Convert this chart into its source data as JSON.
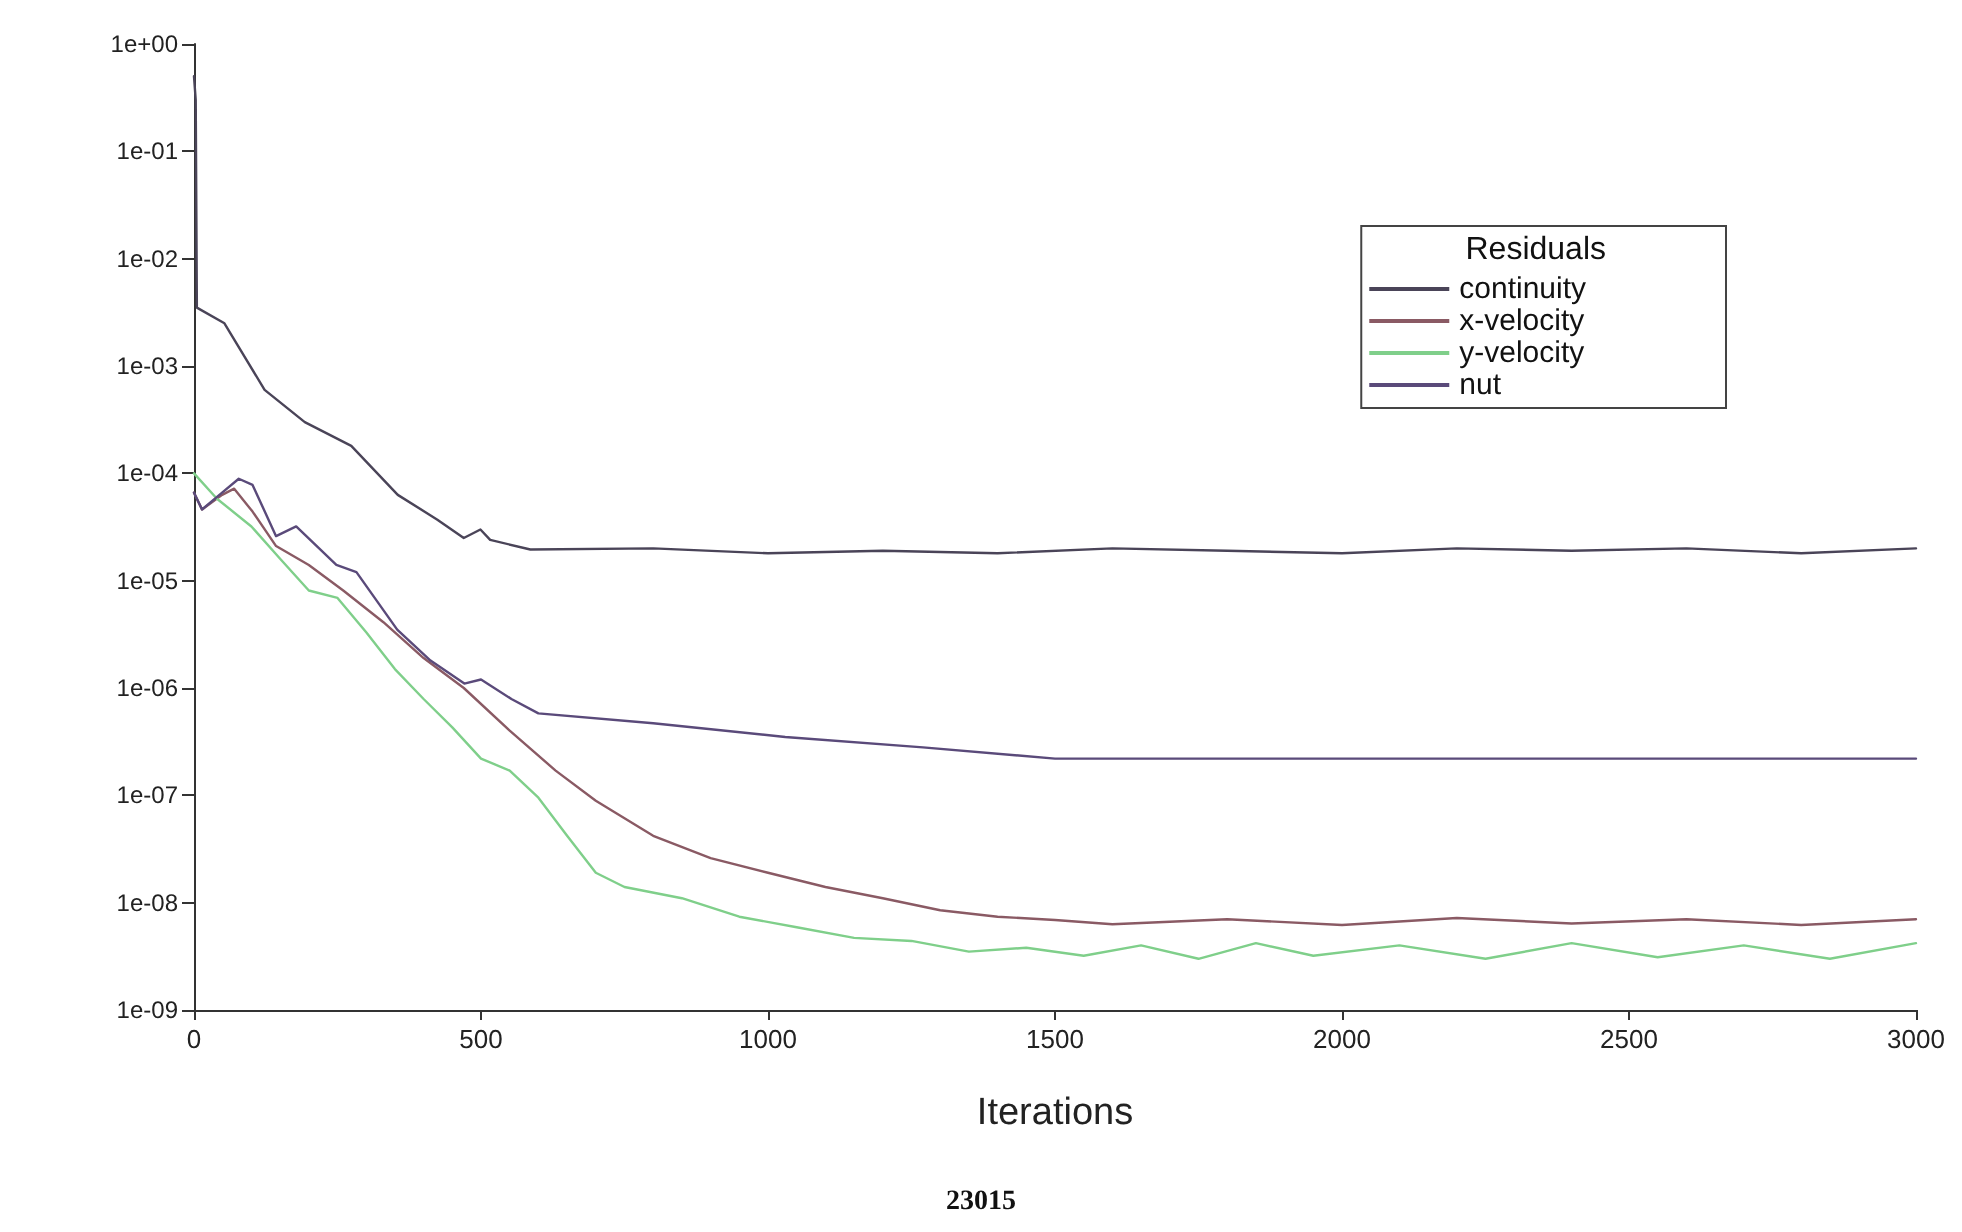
{
  "chart_data": {
    "type": "line",
    "xlabel": "Iterations",
    "legend_title": "Residuals",
    "legend": "top right",
    "grid": false,
    "marker": "none",
    "line_style": "solid",
    "log": "y",
    "xlim": [
      0,
      3000
    ],
    "xticks": [
      0,
      500,
      1000,
      1500,
      2000,
      2500,
      3000
    ],
    "ylim": [
      1e-09,
      1
    ],
    "yticks": [
      {
        "value": 1,
        "label": "1e+00"
      },
      {
        "value": 0.1,
        "label": "1e-01"
      },
      {
        "value": 0.01,
        "label": "1e-02"
      },
      {
        "value": 0.001,
        "label": "1e-03"
      },
      {
        "value": 0.0001,
        "label": "1e-04"
      },
      {
        "value": 1e-05,
        "label": "1e-05"
      },
      {
        "value": 1e-06,
        "label": "1e-06"
      },
      {
        "value": 1e-07,
        "label": "1e-07"
      },
      {
        "value": 1e-08,
        "label": "1e-08"
      },
      {
        "value": 1e-09,
        "label": "1e-09"
      }
    ],
    "annotations": [
      "23015"
    ],
    "series": [
      {
        "name": "continuity",
        "color": "#4a4458",
        "x": [
          0,
          3,
          5,
          53,
          123,
          193,
          274,
          355,
          424,
          470,
          499,
          516,
          586,
          800,
          1000,
          1200,
          1400,
          1600,
          1800,
          2000,
          2200,
          2400,
          2600,
          2800,
          3000
        ],
        "values": [
          0.5,
          0.3,
          0.0035,
          0.0025,
          0.0006,
          0.0003,
          0.00018,
          6.3e-05,
          3.7e-05,
          2.5e-05,
          3e-05,
          2.4e-05,
          1.95e-05,
          2e-05,
          1.8e-05,
          1.9e-05,
          1.8e-05,
          2e-05,
          1.9e-05,
          1.8e-05,
          2e-05,
          1.9e-05,
          2e-05,
          1.8e-05,
          2e-05
        ]
      },
      {
        "name": "x-velocity",
        "color": "#8a5a64",
        "x": [
          0,
          14,
          49,
          70,
          102,
          143,
          200,
          260,
          330,
          400,
          470,
          550,
          630,
          700,
          800,
          900,
          1000,
          1100,
          1200,
          1300,
          1400,
          1500,
          1600,
          1800,
          2000,
          2200,
          2400,
          2600,
          2800,
          3000
        ],
        "values": [
          6.6e-05,
          4.6e-05,
          6.3e-05,
          7.2e-05,
          4.4e-05,
          2.1e-05,
          1.4e-05,
          8.1e-06,
          4.1e-06,
          1.9e-06,
          1e-06,
          4e-07,
          1.7e-07,
          8.9e-08,
          4.2e-08,
          2.6e-08,
          1.9e-08,
          1.4e-08,
          1.1e-08,
          8.5e-09,
          7.4e-09,
          6.9e-09,
          6.3e-09,
          7e-09,
          6.2e-09,
          7.2e-09,
          6.4e-09,
          7e-09,
          6.2e-09,
          7e-09
        ]
      },
      {
        "name": "y-velocity",
        "color": "#7fcf8a",
        "x": [
          0,
          40,
          100,
          150,
          200,
          250,
          300,
          350,
          400,
          450,
          500,
          550,
          600,
          650,
          700,
          750,
          850,
          950,
          1050,
          1150,
          1250,
          1350,
          1450,
          1550,
          1650,
          1750,
          1850,
          1950,
          2100,
          2250,
          2400,
          2550,
          2700,
          2850,
          3000
        ],
        "values": [
          0.0001,
          5.8e-05,
          3.2e-05,
          1.6e-05,
          8.1e-06,
          6.9e-06,
          3.3e-06,
          1.5e-06,
          7.9e-07,
          4.3e-07,
          2.2e-07,
          1.7e-07,
          9.5e-08,
          4.2e-08,
          1.9e-08,
          1.4e-08,
          1.1e-08,
          7.4e-09,
          5.9e-09,
          4.7e-09,
          4.4e-09,
          3.5e-09,
          3.8e-09,
          3.2e-09,
          4e-09,
          3e-09,
          4.2e-09,
          3.2e-09,
          4e-09,
          3e-09,
          4.2e-09,
          3.1e-09,
          4e-09,
          3e-09,
          4.2e-09
        ]
      },
      {
        "name": "nut",
        "color": "#5a4a7a",
        "x": [
          0,
          14,
          49,
          78,
          102,
          143,
          178,
          248,
          283,
          354,
          412,
          471,
          500,
          553,
          600,
          800,
          1030,
          1270,
          1500,
          1700,
          2000,
          2500,
          3000
        ],
        "values": [
          6.6e-05,
          4.6e-05,
          6.6e-05,
          8.9e-05,
          7.8e-05,
          2.6e-05,
          3.2e-05,
          1.4e-05,
          1.2e-05,
          3.5e-06,
          1.8e-06,
          1.1e-06,
          1.2e-06,
          7.9e-07,
          5.8e-07,
          4.7e-07,
          3.5e-07,
          2.8e-07,
          2.2e-07,
          2.2e-07,
          2.2e-07,
          2.2e-07,
          2.2e-07
        ]
      }
    ]
  }
}
